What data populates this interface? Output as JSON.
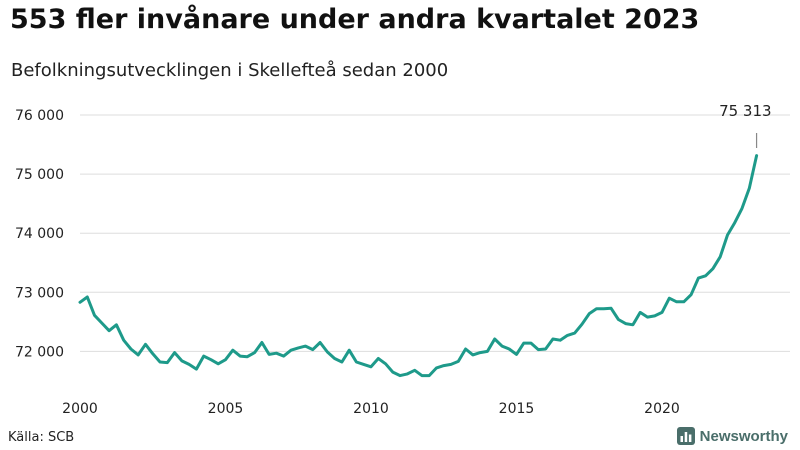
{
  "header": {
    "title": "553 fler invånare under andra kvartalet 2023",
    "subtitle": "Befolkningsutvecklingen i Skellefteå sedan 2000"
  },
  "footer": {
    "source": "Källa: SCB",
    "brand": "Newsworthy",
    "brand_icon": "bar-chart-logo-icon"
  },
  "colors": {
    "line": "#1e9a8a",
    "grid": "#dddddd",
    "brand": "#4a6e6a"
  },
  "chart_data": {
    "type": "line",
    "title": "553 fler invånare under andra kvartalet 2023",
    "subtitle": "Befolkningsutvecklingen i Skellefteå sedan 2000",
    "xlabel": "",
    "ylabel": "",
    "xlim": [
      2000,
      2023.5
    ],
    "ylim": [
      71400,
      76300
    ],
    "grid": true,
    "legend": "none",
    "x_ticks": [
      2000,
      2005,
      2010,
      2015,
      2020
    ],
    "x_tick_labels": [
      "2000",
      "2005",
      "2010",
      "2015",
      "2020"
    ],
    "y_ticks": [
      72000,
      73000,
      74000,
      75000,
      76000
    ],
    "y_tick_labels": [
      "72 000",
      "73 000",
      "74 000",
      "75 000",
      "76 000"
    ],
    "annotation": {
      "text": "75 313",
      "x": 2023.25,
      "y": 75313
    },
    "series": [
      {
        "x": [
          2000.0,
          2000.25,
          2000.5,
          2000.75,
          2001.0,
          2001.25,
          2001.5,
          2001.75,
          2002.0,
          2002.25,
          2002.5,
          2002.75,
          2003.0,
          2003.25,
          2003.5,
          2003.75,
          2004.0,
          2004.25,
          2004.5,
          2004.75,
          2005.0,
          2005.25,
          2005.5,
          2005.75,
          2006.0,
          2006.25,
          2006.5,
          2006.75,
          2007.0,
          2007.25,
          2007.5,
          2007.75,
          2008.0,
          2008.25,
          2008.5,
          2008.75,
          2009.0,
          2009.25,
          2009.5,
          2009.75,
          2010.0,
          2010.25,
          2010.5,
          2010.75,
          2011.0,
          2011.25,
          2011.5,
          2011.75,
          2012.0,
          2012.25,
          2012.5,
          2012.75,
          2013.0,
          2013.25,
          2013.5,
          2013.75,
          2014.0,
          2014.25,
          2014.5,
          2014.75,
          2015.0,
          2015.25,
          2015.5,
          2015.75,
          2016.0,
          2016.25,
          2016.5,
          2016.75,
          2017.0,
          2017.25,
          2017.5,
          2017.75,
          2018.0,
          2018.25,
          2018.5,
          2018.75,
          2019.0,
          2019.25,
          2019.5,
          2019.75,
          2020.0,
          2020.25,
          2020.5,
          2020.75,
          2021.0,
          2021.25,
          2021.5,
          2021.75,
          2022.0,
          2022.25,
          2022.5,
          2022.75,
          2023.0,
          2023.25
        ],
        "values": [
          72830,
          72920,
          72610,
          72480,
          72350,
          72450,
          72190,
          72040,
          71940,
          72120,
          71960,
          71820,
          71810,
          71980,
          71840,
          71780,
          71700,
          71920,
          71860,
          71790,
          71860,
          72020,
          71920,
          71910,
          71980,
          72150,
          71950,
          71970,
          71920,
          72020,
          72060,
          72090,
          72030,
          72150,
          71990,
          71880,
          71820,
          72020,
          71820,
          71780,
          71740,
          71880,
          71790,
          71650,
          71590,
          71620,
          71680,
          71590,
          71590,
          71720,
          71760,
          71780,
          71830,
          72040,
          71940,
          71980,
          72000,
          72210,
          72090,
          72040,
          71950,
          72140,
          72140,
          72030,
          72040,
          72210,
          72190,
          72270,
          72310,
          72460,
          72640,
          72720,
          72720,
          72730,
          72540,
          72470,
          72450,
          72660,
          72580,
          72600,
          72660,
          72900,
          72840,
          72840,
          72960,
          73240,
          73280,
          73400,
          73600,
          73970,
          74180,
          74420,
          74760,
          75313
        ]
      }
    ]
  }
}
